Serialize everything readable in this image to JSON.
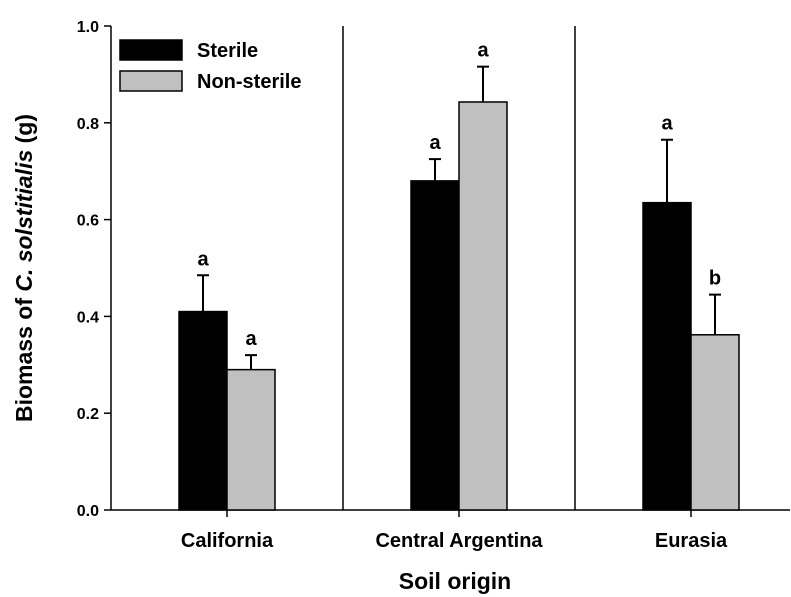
{
  "chart_data": {
    "type": "bar",
    "categories": [
      "California",
      "Central Argentina",
      "Eurasia"
    ],
    "series": [
      {
        "name": "Sterile",
        "values": [
          0.41,
          0.68,
          0.635
        ],
        "errors": [
          0.075,
          0.045,
          0.13
        ],
        "significance": [
          "a",
          "a",
          "a"
        ],
        "color": "#000000"
      },
      {
        "name": "Non-sterile",
        "values": [
          0.29,
          0.843,
          0.362
        ],
        "errors": [
          0.03,
          0.073,
          0.083
        ],
        "significance": [
          "a",
          "a",
          "b"
        ],
        "color": "#c0c0c0"
      }
    ],
    "xlabel": "Soil origin",
    "ylabel_prefix": "Biomass of ",
    "ylabel_italic": "C. solstitialis",
    "ylabel_suffix": " (g)",
    "ylim": [
      0,
      1.0
    ],
    "yticks": [
      "0.0",
      "0.2",
      "0.4",
      "0.6",
      "0.8",
      "1.0"
    ],
    "grid": false,
    "legend": "top-left",
    "group_dividers": true
  }
}
